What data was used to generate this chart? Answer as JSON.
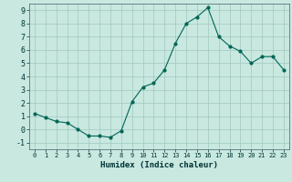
{
  "title": "",
  "xlabel": "Humidex (Indice chaleur)",
  "ylabel": "",
  "background_color": "#c8e8e0",
  "grid_color": "#a0c8c0",
  "line_color": "#006655",
  "marker_color": "#006655",
  "xlim": [
    -0.5,
    23.5
  ],
  "ylim": [
    -1.5,
    9.5
  ],
  "yticks": [
    -1,
    0,
    1,
    2,
    3,
    4,
    5,
    6,
    7,
    8,
    9
  ],
  "xticks": [
    0,
    1,
    2,
    3,
    4,
    5,
    6,
    7,
    8,
    9,
    10,
    11,
    12,
    13,
    14,
    15,
    16,
    17,
    18,
    19,
    20,
    21,
    22,
    23
  ],
  "x": [
    0,
    1,
    2,
    3,
    4,
    5,
    6,
    7,
    8,
    9,
    10,
    11,
    12,
    13,
    14,
    15,
    16,
    17,
    18,
    19,
    20,
    21,
    22,
    23
  ],
  "y": [
    1.2,
    0.9,
    0.6,
    0.5,
    -0.0,
    -0.5,
    -0.5,
    -0.6,
    -0.1,
    2.1,
    3.2,
    3.5,
    4.5,
    6.5,
    8.0,
    8.5,
    9.2,
    7.0,
    6.3,
    5.9,
    5.0,
    5.5,
    5.5,
    4.5
  ]
}
